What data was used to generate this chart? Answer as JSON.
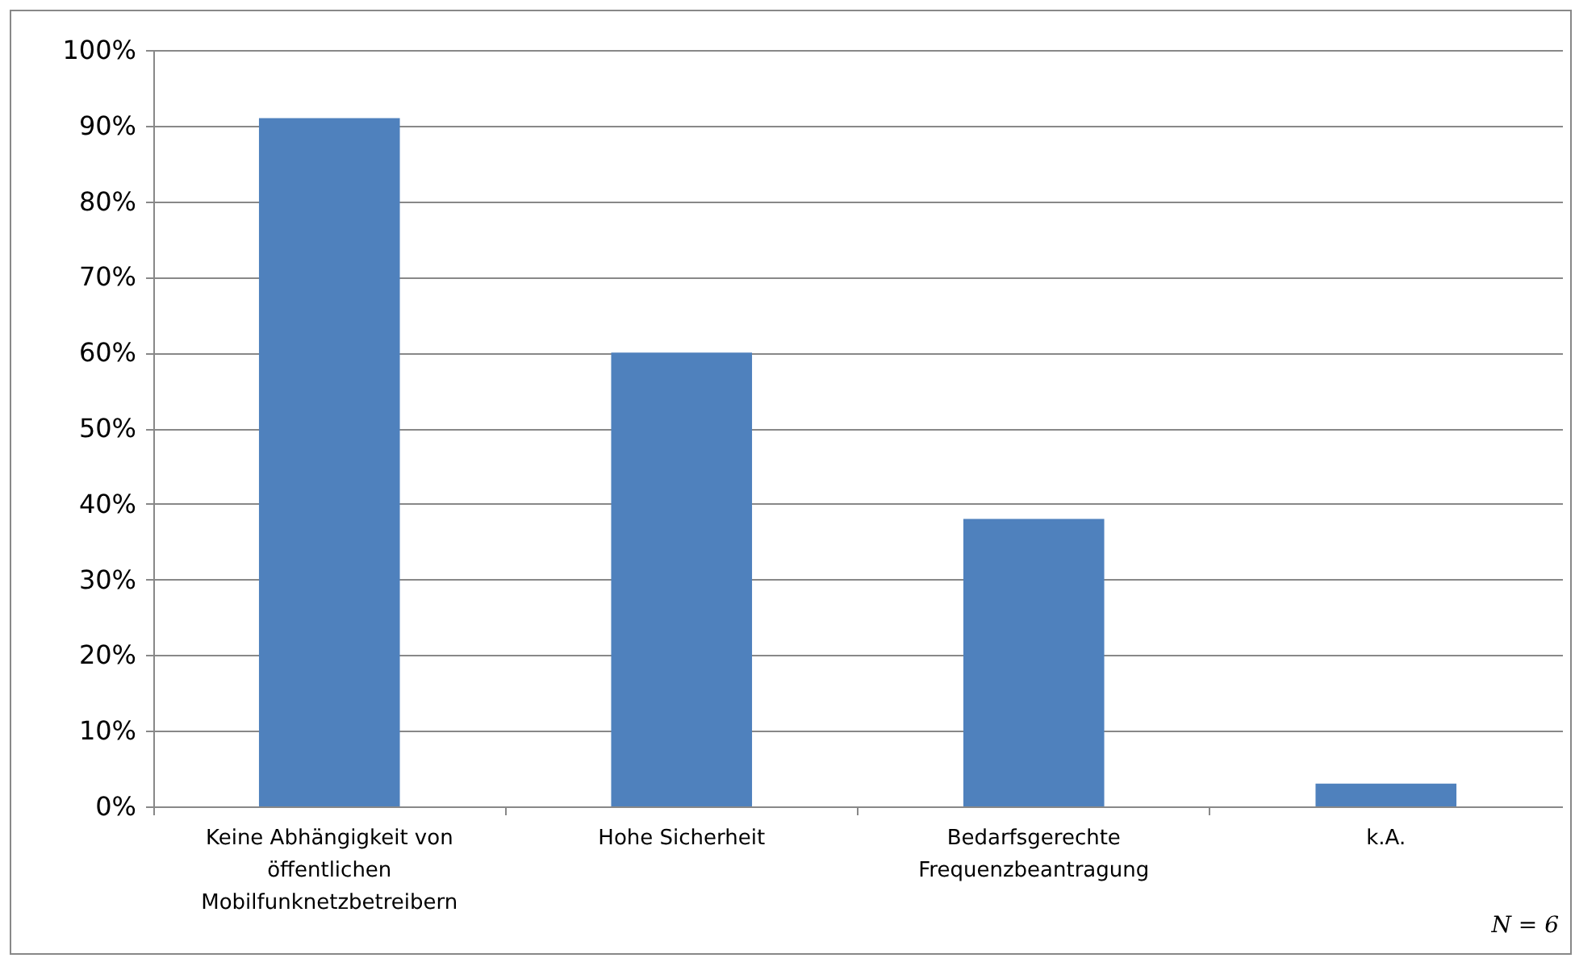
{
  "chart_data": {
    "type": "bar",
    "categories": [
      "Keine Abhängigkeit von öffentlichen Mobilfunknetzbetreibern",
      "Hohe Sicherheit",
      "Bedarfsgerechte Frequenzbeantragung",
      "k.A."
    ],
    "values": [
      91,
      60,
      38,
      3
    ],
    "color": "#4f81bd",
    "ylim": [
      0,
      100
    ],
    "yticks": [
      {
        "value": 0,
        "label": "0%"
      },
      {
        "value": 10,
        "label": "10%"
      },
      {
        "value": 20,
        "label": "20%"
      },
      {
        "value": 30,
        "label": "30%"
      },
      {
        "value": 40,
        "label": "40%"
      },
      {
        "value": 50,
        "label": "50%"
      },
      {
        "value": 60,
        "label": "60%"
      },
      {
        "value": 70,
        "label": "70%"
      },
      {
        "value": 80,
        "label": "80%"
      },
      {
        "value": 90,
        "label": "90%"
      },
      {
        "value": 100,
        "label": "100%"
      }
    ],
    "grid": "y",
    "annotations": [
      "N = 6"
    ]
  }
}
